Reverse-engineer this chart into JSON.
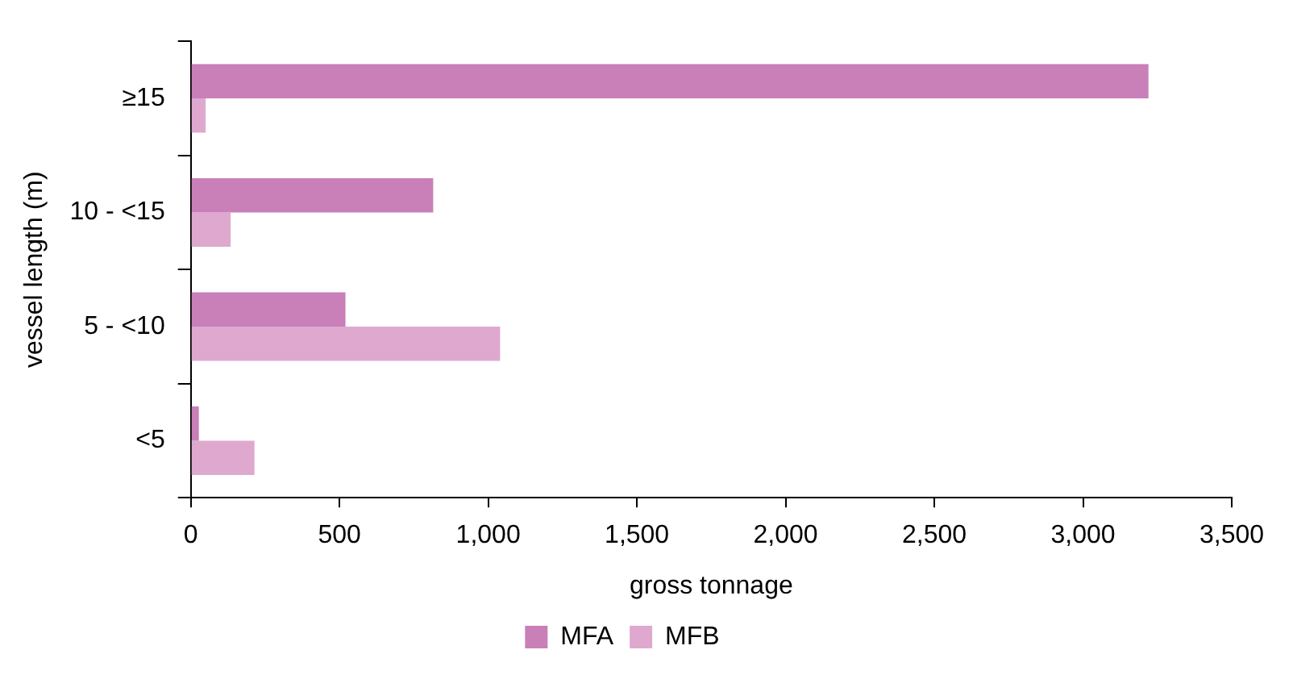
{
  "chart_data": {
    "type": "bar",
    "orientation": "horizontal",
    "xlabel": "gross tonnage",
    "ylabel": "vessel length (m)",
    "categories": [
      "≥15",
      "10 - <15",
      "5 - <10",
      "<5"
    ],
    "series": [
      {
        "name": "MFA",
        "color": "#c97fb8",
        "values": [
          3220,
          815,
          520,
          27
        ]
      },
      {
        "name": "MFB",
        "color": "#dfa9cf",
        "values": [
          50,
          134,
          1040,
          214
        ]
      }
    ],
    "xlim": [
      0,
      3500
    ],
    "xticks": [
      {
        "value": 0,
        "label": "0"
      },
      {
        "value": 500,
        "label": "500"
      },
      {
        "value": 1000,
        "label": "1,000"
      },
      {
        "value": 1500,
        "label": "1,500"
      },
      {
        "value": 2000,
        "label": "2,000"
      },
      {
        "value": 2500,
        "label": "2,500"
      },
      {
        "value": 3000,
        "label": "3,000"
      },
      {
        "value": 3500,
        "label": "3,500"
      }
    ],
    "grid": false,
    "legend": "bottom"
  }
}
